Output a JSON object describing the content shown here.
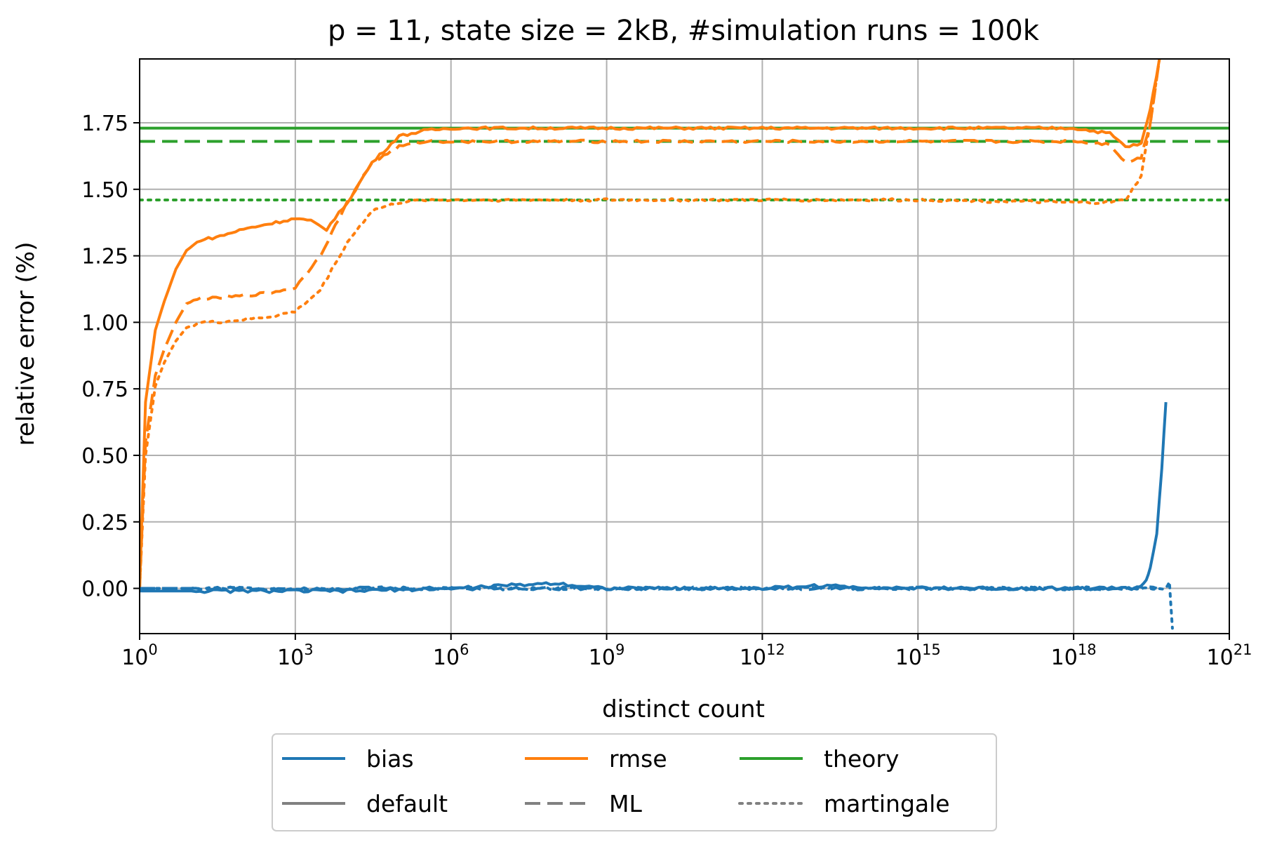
{
  "chart_data": {
    "type": "line",
    "title": "p = 11, state size = 2kB, #simulation runs = 100k",
    "xlabel": "distinct count",
    "ylabel": "relative error (%)",
    "x_scale": "log10",
    "xlim": [
      1,
      1e+21
    ],
    "ylim": [
      -0.17,
      1.99
    ],
    "grid": true,
    "x_ticks": [
      {
        "base": "10",
        "exp": "0",
        "value": 1
      },
      {
        "base": "10",
        "exp": "3",
        "value": 1000.0
      },
      {
        "base": "10",
        "exp": "6",
        "value": 1000000.0
      },
      {
        "base": "10",
        "exp": "9",
        "value": 1000000000.0
      },
      {
        "base": "10",
        "exp": "12",
        "value": 1000000000000.0
      },
      {
        "base": "10",
        "exp": "15",
        "value": 1000000000000000.0
      },
      {
        "base": "10",
        "exp": "18",
        "value": 1e+18
      },
      {
        "base": "10",
        "exp": "21",
        "value": 1e+21
      }
    ],
    "y_ticks": [
      "0.00",
      "0.25",
      "0.50",
      "0.75",
      "1.00",
      "1.25",
      "1.50",
      "1.75"
    ],
    "colors": {
      "bias": "#1f77b4",
      "rmse": "#ff7f0e",
      "theory": "#2ca02c",
      "legend_gray": "#808080"
    },
    "legend": {
      "placement": "below plot, 3 columns",
      "entries": [
        {
          "label": "bias",
          "color": "#1f77b4",
          "style": "solid"
        },
        {
          "label": "rmse",
          "color": "#ff7f0e",
          "style": "solid"
        },
        {
          "label": "theory",
          "color": "#2ca02c",
          "style": "solid"
        },
        {
          "label": "default",
          "color": "#808080",
          "style": "solid"
        },
        {
          "label": "ML",
          "color": "#808080",
          "style": "dashed"
        },
        {
          "label": "martingale",
          "color": "#808080",
          "style": "dotted"
        }
      ]
    },
    "series": [
      {
        "metric": "theory",
        "estimator": "default",
        "color": "#2ca02c",
        "style": "solid",
        "constant": 1.73
      },
      {
        "metric": "theory",
        "estimator": "ML",
        "color": "#2ca02c",
        "style": "dashed",
        "constant": 1.68
      },
      {
        "metric": "theory",
        "estimator": "martingale",
        "color": "#2ca02c",
        "style": "dotted",
        "constant": 1.46
      },
      {
        "metric": "rmse",
        "estimator": "default",
        "color": "#ff7f0e",
        "style": "solid",
        "x": [
          1,
          1.3,
          2,
          3,
          5,
          8,
          15,
          30,
          100,
          300,
          1000,
          2000,
          4000,
          10000,
          30000,
          100000,
          300000,
          1000000.0,
          1000000000.0,
          1000000000000.0,
          1000000000000000.0,
          1e+18,
          5e+18,
          1e+19,
          2e+19,
          3e+19,
          4.5e+19
        ],
        "y": [
          0.0,
          0.7,
          0.97,
          1.08,
          1.2,
          1.27,
          1.31,
          1.32,
          1.35,
          1.37,
          1.39,
          1.38,
          1.35,
          1.45,
          1.6,
          1.7,
          1.72,
          1.73,
          1.73,
          1.73,
          1.73,
          1.73,
          1.71,
          1.66,
          1.67,
          1.8,
          1.99
        ]
      },
      {
        "metric": "rmse",
        "estimator": "ML",
        "color": "#ff7f0e",
        "style": "dashed",
        "x": [
          1,
          1.3,
          2,
          3,
          5,
          8,
          15,
          30,
          100,
          300,
          1000,
          3000,
          10000,
          30000,
          100000,
          300000,
          1000000.0,
          1000000000.0,
          1000000000000.0,
          1000000000000000.0,
          1e+18,
          5e+18,
          1e+19,
          2e+19,
          3e+19,
          4.5e+19
        ],
        "y": [
          0.0,
          0.55,
          0.8,
          0.9,
          1.0,
          1.07,
          1.09,
          1.09,
          1.1,
          1.11,
          1.13,
          1.25,
          1.45,
          1.6,
          1.66,
          1.68,
          1.68,
          1.68,
          1.68,
          1.68,
          1.68,
          1.67,
          1.6,
          1.62,
          1.75,
          1.99
        ]
      },
      {
        "metric": "rmse",
        "estimator": "martingale",
        "color": "#ff7f0e",
        "style": "dotted",
        "x": [
          1,
          1.3,
          2,
          3,
          5,
          8,
          15,
          30,
          100,
          300,
          1000,
          3000,
          10000,
          30000,
          100000,
          300000,
          1000000.0,
          1000000000.0,
          1000000000000.0,
          1000000000000000.0,
          1e+18,
          5e+18,
          1e+19,
          2e+19,
          3e+19,
          4.5e+19
        ],
        "y": [
          0.0,
          0.5,
          0.76,
          0.85,
          0.93,
          0.98,
          1.0,
          1.0,
          1.01,
          1.02,
          1.04,
          1.12,
          1.3,
          1.42,
          1.45,
          1.46,
          1.46,
          1.46,
          1.46,
          1.46,
          1.45,
          1.45,
          1.46,
          1.55,
          1.75,
          1.99
        ]
      },
      {
        "metric": "bias",
        "estimator": "default",
        "color": "#1f77b4",
        "style": "solid",
        "x": [
          1,
          10,
          100,
          1000,
          10000.0,
          1000000.0,
          100000000.0,
          1000000000.0,
          1000000000000.0,
          10000000000000.0,
          1000000000000000.0,
          1e+18,
          1e+19,
          1.5e+19,
          2e+19,
          2.5e+19,
          3e+19,
          4e+19,
          5e+19,
          6e+19
        ],
        "y": [
          -0.01,
          -0.01,
          -0.01,
          -0.01,
          -0.01,
          0.0,
          0.02,
          0.0,
          0.0,
          0.01,
          0.0,
          0.0,
          0.0,
          0.0,
          0.01,
          0.03,
          0.08,
          0.2,
          0.45,
          0.7
        ]
      },
      {
        "metric": "bias",
        "estimator": "ML",
        "color": "#1f77b4",
        "style": "dashed",
        "x": [
          1,
          1000000.0,
          1000000000000.0,
          1e+18,
          2e+19,
          4e+19
        ],
        "y": [
          0.0,
          0.0,
          0.0,
          0.0,
          0.0,
          0.0
        ]
      },
      {
        "metric": "bias",
        "estimator": "martingale",
        "color": "#1f77b4",
        "style": "dotted",
        "x": [
          1,
          1000000.0,
          1000000000000.0,
          1e+18,
          2e+19,
          4e+19,
          6e+19,
          7e+19,
          8e+19
        ],
        "y": [
          0.0,
          0.0,
          0.0,
          0.0,
          0.0,
          0.0,
          0.0,
          0.03,
          -0.15
        ]
      }
    ]
  }
}
